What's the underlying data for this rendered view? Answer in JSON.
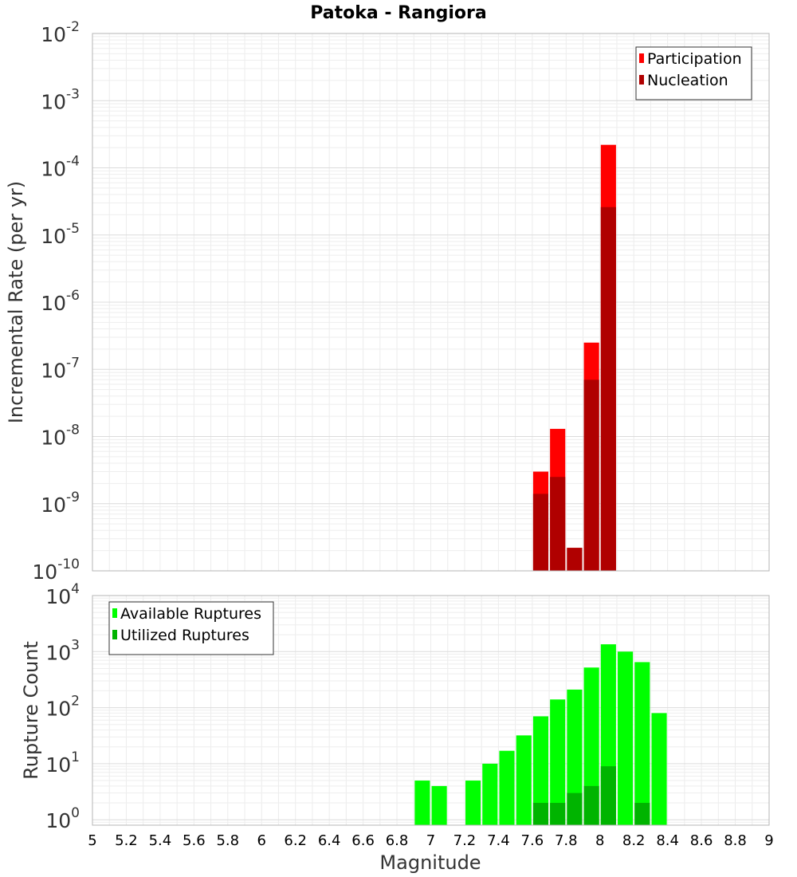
{
  "chart_data": [
    {
      "type": "bar",
      "title": "Patoka - Rangiora",
      "xlabel": "",
      "ylabel": "Incremental Rate (per yr)",
      "y_scale": "log",
      "ylim": [
        1e-10,
        0.01
      ],
      "xlim": [
        5,
        9
      ],
      "bar_width": 0.09,
      "grid": true,
      "legend_position": "top-right",
      "series": [
        {
          "name": "Participation",
          "color": "#ff0000",
          "x": [
            7.65,
            7.75,
            7.85,
            7.95,
            8.05
          ],
          "values": [
            3e-09,
            1.3e-08,
            2.2e-10,
            2.5e-07,
            0.00022
          ]
        },
        {
          "name": "Nucleation",
          "color": "#b00000",
          "x": [
            7.65,
            7.75,
            7.85,
            7.95,
            8.05
          ],
          "values": [
            1.4e-09,
            2.5e-09,
            2.2e-10,
            7e-08,
            2.6e-05
          ]
        }
      ]
    },
    {
      "type": "bar",
      "title": "",
      "xlabel": "Magnitude",
      "ylabel": "Rupture Count",
      "y_scale": "log",
      "ylim": [
        0.8,
        10000
      ],
      "xlim": [
        5,
        9
      ],
      "bar_width": 0.09,
      "grid": true,
      "legend_position": "top-left",
      "x_ticks": [
        "5",
        "5.2",
        "5.4",
        "5.6",
        "5.8",
        "6",
        "6.2",
        "6.4",
        "6.6",
        "6.8",
        "7",
        "7.2",
        "7.4",
        "7.6",
        "7.8",
        "8",
        "8.2",
        "8.4",
        "8.6",
        "8.8",
        "9"
      ],
      "series": [
        {
          "name": "Available Ruptures",
          "color": "#00ff00",
          "x": [
            6.95,
            7.05,
            7.25,
            7.35,
            7.45,
            7.55,
            7.65,
            7.75,
            7.85,
            7.95,
            8.05,
            8.15,
            8.25,
            8.35
          ],
          "values": [
            5,
            4,
            5,
            10,
            17,
            32,
            70,
            140,
            210,
            520,
            1350,
            1000,
            650,
            80
          ]
        },
        {
          "name": "Utilized Ruptures",
          "color": "#00b400",
          "x": [
            7.65,
            7.75,
            7.85,
            7.95,
            8.05,
            8.25
          ],
          "values": [
            2,
            2,
            3,
            4,
            9,
            2
          ]
        }
      ]
    }
  ]
}
